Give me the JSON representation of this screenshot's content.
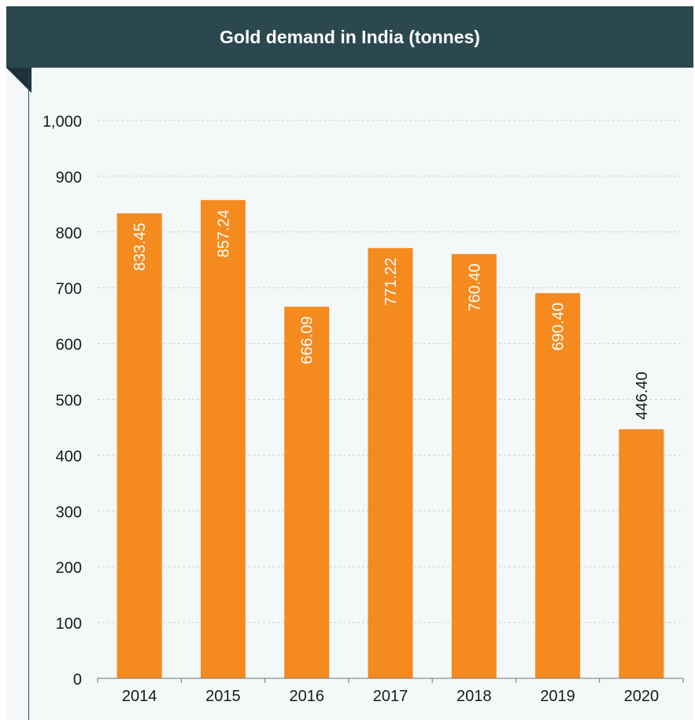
{
  "title": "Gold demand in India (tonnes)",
  "colors": {
    "header": "#2b4850",
    "bar": "#f58a1f",
    "panel": "#f4f8f9"
  },
  "chart_data": {
    "type": "bar",
    "title": "Gold demand in India (tonnes)",
    "categories": [
      "2014",
      "2015",
      "2016",
      "2017",
      "2018",
      "2019",
      "2020"
    ],
    "values": [
      833.45,
      857.24,
      666.09,
      771.22,
      760.4,
      690.4,
      446.4
    ],
    "value_labels": [
      "833.45",
      "857.24",
      "666.09",
      "771.22",
      "760.40",
      "690.40",
      "446.40"
    ],
    "ylim": [
      0,
      1000
    ],
    "yticks": [
      0,
      100,
      200,
      300,
      400,
      500,
      600,
      700,
      800,
      900,
      1000
    ],
    "ytick_labels": [
      "0",
      "100",
      "200",
      "300",
      "400",
      "500",
      "600",
      "700",
      "800",
      "900",
      "1,000"
    ],
    "xlabel": "",
    "ylabel": "",
    "grid": true,
    "legend": "none"
  }
}
